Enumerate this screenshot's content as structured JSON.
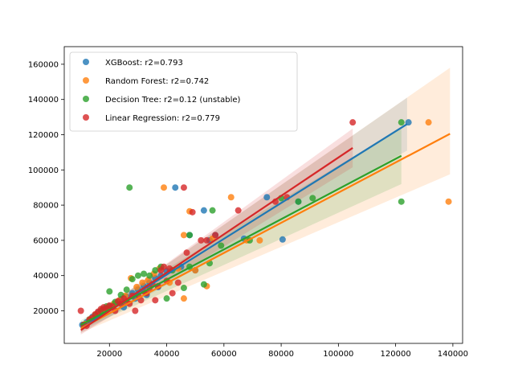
{
  "chart_data": {
    "type": "scatter",
    "xlim": [
      4200,
      143400
    ],
    "ylim": [
      1500,
      170000
    ],
    "xticks": [
      20000,
      40000,
      60000,
      80000,
      100000,
      120000,
      140000
    ],
    "yticks": [
      20000,
      40000,
      60000,
      80000,
      100000,
      120000,
      140000,
      160000
    ],
    "xtick_labels": [
      "20000",
      "40000",
      "60000",
      "80000",
      "100000",
      "120000",
      "140000"
    ],
    "ytick_labels": [
      "20000",
      "40000",
      "60000",
      "80000",
      "100000",
      "120000",
      "140000",
      "160000"
    ],
    "grid": false,
    "legend_position": "top-left",
    "series": [
      {
        "name": "XGBoost: r2=0.793",
        "color": "#1f77b4",
        "points": [
          [
            10500,
            12000
          ],
          [
            12000,
            13500
          ],
          [
            14000,
            16500
          ],
          [
            16000,
            19000
          ],
          [
            18000,
            21000
          ],
          [
            20000,
            22500
          ],
          [
            22000,
            24000
          ],
          [
            24000,
            26500
          ],
          [
            26000,
            28000
          ],
          [
            28000,
            30000
          ],
          [
            30000,
            32000
          ],
          [
            32000,
            34000
          ],
          [
            34000,
            36000
          ],
          [
            36000,
            38500
          ],
          [
            38000,
            40000
          ],
          [
            40000,
            42500
          ],
          [
            25000,
            22000
          ],
          [
            29000,
            27000
          ],
          [
            33000,
            29000
          ],
          [
            37000,
            33500
          ],
          [
            43000,
            90000
          ],
          [
            53000,
            77000
          ],
          [
            48000,
            63000
          ],
          [
            55000,
            60000
          ],
          [
            57000,
            63000
          ],
          [
            45000,
            45000
          ],
          [
            50000,
            43000
          ],
          [
            67000,
            61000
          ],
          [
            75000,
            84500
          ],
          [
            80500,
            60500
          ],
          [
            86000,
            82000
          ],
          [
            124500,
            127000
          ]
        ],
        "fit": {
          "x": [
            10000,
            124000
          ],
          "y": [
            10000,
            126000
          ]
        },
        "band_upper": [
          12500,
          141000
        ],
        "band_lower": [
          7500,
          111000
        ]
      },
      {
        "name": "Random Forest: r2=0.742",
        "color": "#ff7f0e",
        "points": [
          [
            11500,
            12500
          ],
          [
            13500,
            15500
          ],
          [
            15500,
            18000
          ],
          [
            17500,
            20500
          ],
          [
            19500,
            22000
          ],
          [
            21500,
            24000
          ],
          [
            23500,
            26000
          ],
          [
            25500,
            28500
          ],
          [
            27500,
            38500
          ],
          [
            29500,
            33500
          ],
          [
            31500,
            36000
          ],
          [
            33500,
            37500
          ],
          [
            35500,
            41000
          ],
          [
            37500,
            44000
          ],
          [
            39000,
            90000
          ],
          [
            41000,
            36000
          ],
          [
            44000,
            44000
          ],
          [
            46000,
            27000
          ],
          [
            46000,
            63000
          ],
          [
            48000,
            76500
          ],
          [
            50000,
            43000
          ],
          [
            54000,
            34000
          ],
          [
            56000,
            61000
          ],
          [
            62500,
            84500
          ],
          [
            68000,
            60000
          ],
          [
            72500,
            60000
          ],
          [
            131500,
            127000
          ],
          [
            138500,
            82000
          ]
        ],
        "fit": {
          "x": [
            10000,
            139000
          ],
          "y": [
            10000,
            120500
          ]
        },
        "band_upper": [
          12500,
          158000
        ],
        "band_lower": [
          7500,
          97500
        ]
      },
      {
        "name": "Decision Tree: r2=0.12 (unstable)",
        "color": "#2ca02c",
        "points": [
          [
            11000,
            12000
          ],
          [
            13000,
            15000
          ],
          [
            15000,
            17500
          ],
          [
            17000,
            20000
          ],
          [
            19000,
            22500
          ],
          [
            20000,
            31000
          ],
          [
            22000,
            25000
          ],
          [
            24000,
            29000
          ],
          [
            26000,
            32000
          ],
          [
            27000,
            90000
          ],
          [
            28000,
            38000
          ],
          [
            30000,
            40000
          ],
          [
            32000,
            41000
          ],
          [
            34000,
            40000
          ],
          [
            36000,
            43000
          ],
          [
            38000,
            45000
          ],
          [
            40000,
            27000
          ],
          [
            42000,
            43000
          ],
          [
            46000,
            33000
          ],
          [
            48000,
            45000
          ],
          [
            53000,
            35000
          ],
          [
            55000,
            47000
          ],
          [
            56000,
            77000
          ],
          [
            48000,
            63000
          ],
          [
            59000,
            57000
          ],
          [
            69000,
            60000
          ],
          [
            80000,
            84000
          ],
          [
            86000,
            82000
          ],
          [
            91000,
            84000
          ],
          [
            122000,
            82000
          ],
          [
            122000,
            127000
          ]
        ],
        "fit": {
          "x": [
            10000,
            122000
          ],
          "y": [
            12000,
            108000
          ]
        },
        "band_upper": [
          14500,
          124000
        ],
        "band_lower": [
          9000,
          92000
        ]
      },
      {
        "name": "Linear Regression: r2=0.779",
        "color": "#d62728",
        "points": [
          [
            10000,
            20000
          ],
          [
            11000,
            12000
          ],
          [
            12000,
            11500
          ],
          [
            13000,
            15000
          ],
          [
            14000,
            16000
          ],
          [
            15000,
            18000
          ],
          [
            16000,
            19500
          ],
          [
            17000,
            21000
          ],
          [
            18000,
            22000
          ],
          [
            19000,
            21000
          ],
          [
            20000,
            23000
          ],
          [
            21000,
            22500
          ],
          [
            22000,
            20000
          ],
          [
            23000,
            25500
          ],
          [
            24000,
            24000
          ],
          [
            25000,
            27000
          ],
          [
            26000,
            25000
          ],
          [
            27000,
            24000
          ],
          [
            28000,
            28500
          ],
          [
            29000,
            20000
          ],
          [
            30000,
            29000
          ],
          [
            31000,
            26000
          ],
          [
            32000,
            31000
          ],
          [
            33000,
            30000
          ],
          [
            34000,
            33000
          ],
          [
            35000,
            35000
          ],
          [
            36000,
            26000
          ],
          [
            37000,
            34000
          ],
          [
            38000,
            43000
          ],
          [
            39000,
            45000
          ],
          [
            40000,
            37000
          ],
          [
            41000,
            44000
          ],
          [
            42000,
            30000
          ],
          [
            44000,
            36000
          ],
          [
            46000,
            90000
          ],
          [
            47000,
            53000
          ],
          [
            49000,
            76000
          ],
          [
            52000,
            60000
          ],
          [
            54000,
            60000
          ],
          [
            57000,
            63000
          ],
          [
            65000,
            77000
          ],
          [
            78000,
            82000
          ],
          [
            82000,
            84500
          ],
          [
            105000,
            127000
          ]
        ],
        "fit": {
          "x": [
            10000,
            105000
          ],
          "y": [
            9000,
            112500
          ]
        },
        "band_upper": [
          11500,
          123500
        ],
        "band_lower": [
          6500,
          101500
        ]
      }
    ]
  }
}
